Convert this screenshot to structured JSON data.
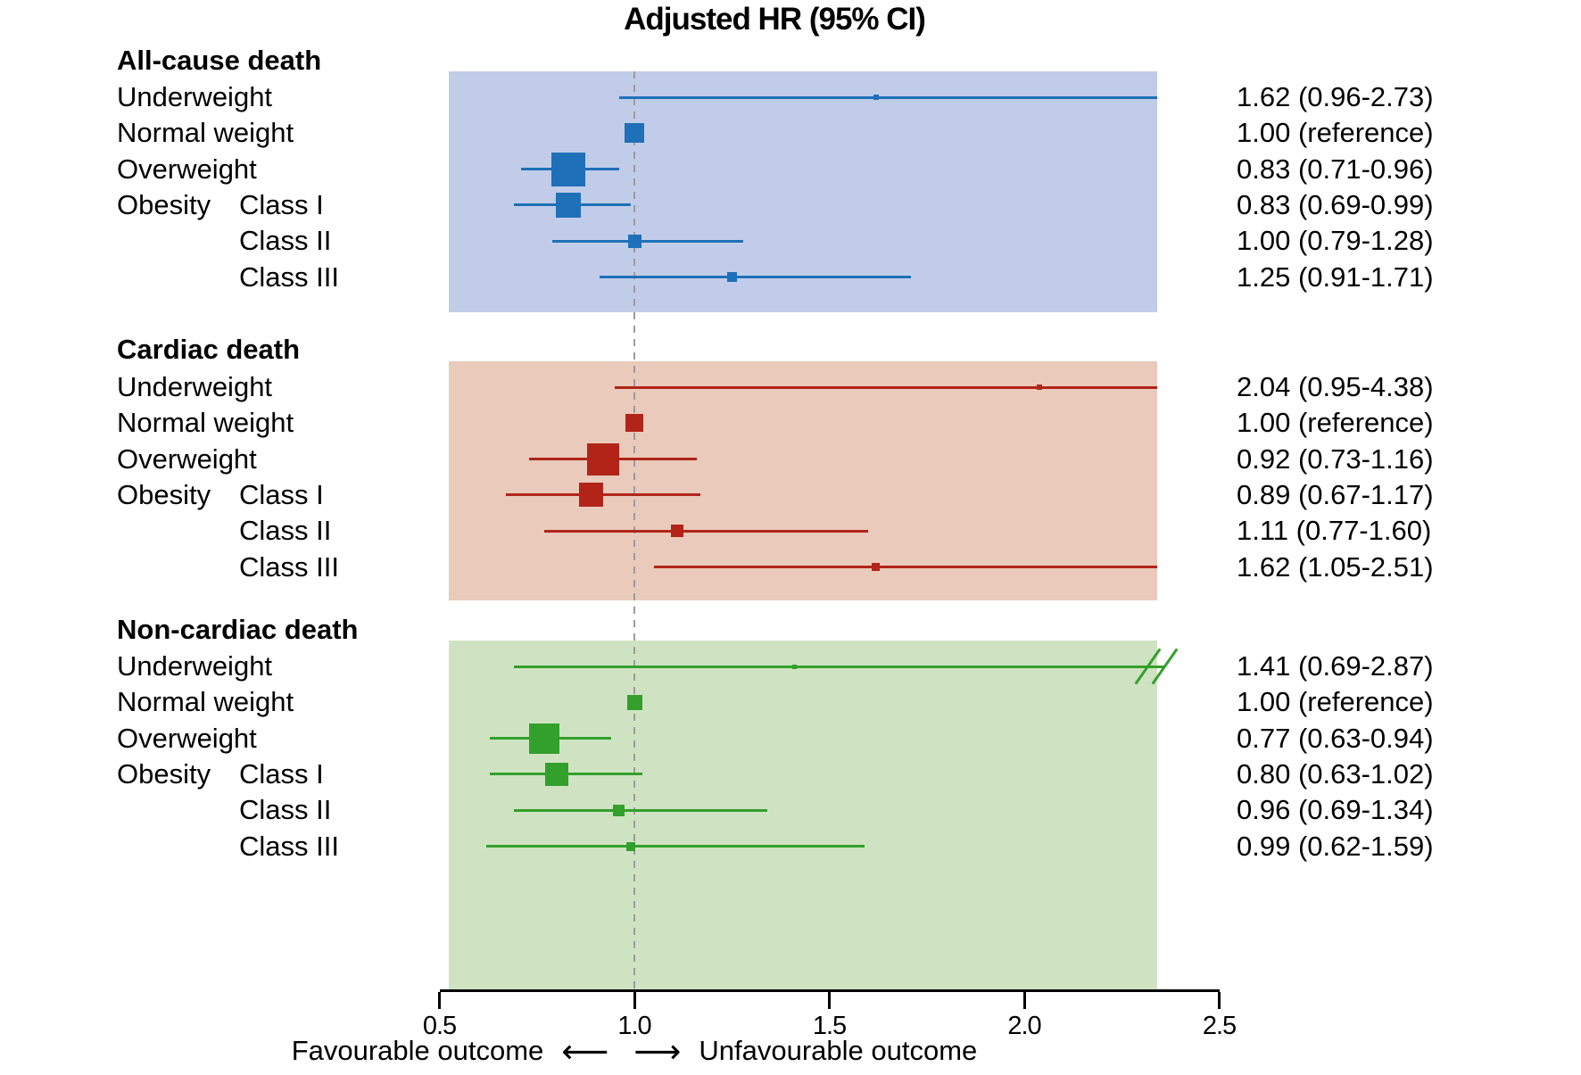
{
  "chart_data": {
    "type": "forest",
    "title": "Adjusted HR (95% CI)",
    "x_axis": {
      "scale": "linear",
      "min": 0.5,
      "max": 2.5,
      "ticks": [
        0.5,
        1.0,
        1.5,
        2.0,
        2.5
      ],
      "tick_labels": [
        "0.5",
        "1.0",
        "1.5",
        "2.0",
        "2.5"
      ],
      "reference_line": 1.0,
      "plot_band_range": [
        0.52,
        2.34
      ]
    },
    "footer": {
      "favourable_label": "Favourable outcome",
      "left_arrow": "⟵",
      "right_arrow": "⟶",
      "unfavourable_label": "Unfavourable outcome"
    },
    "reference_line_color": "#9b9b9b",
    "axis_color": "#000000",
    "sections": [
      {
        "name": "All-cause death",
        "band_color": "#c1cce8",
        "marker_color": "#1e71b8",
        "rows": [
          {
            "label": "Underweight",
            "sublabel": "",
            "display": "1.62 (0.96-2.73)",
            "hr": 1.62,
            "ci_low": 0.96,
            "ci_high": 2.73,
            "marker_size": 6,
            "reference": false,
            "clip_high": true,
            "break_symbol": false
          },
          {
            "label": "Normal weight",
            "sublabel": "",
            "display": "1.00 (reference)",
            "hr": 1.0,
            "ci_low": null,
            "ci_high": null,
            "marker_size": 22,
            "reference": true,
            "clip_high": false,
            "break_symbol": false
          },
          {
            "label": "Overweight",
            "sublabel": "",
            "display": "0.83 (0.71-0.96)",
            "hr": 0.83,
            "ci_low": 0.71,
            "ci_high": 0.96,
            "marker_size": 38,
            "reference": false,
            "clip_high": false,
            "break_symbol": false
          },
          {
            "label": "Obesity",
            "sublabel": "Class I",
            "display": "0.83 (0.69-0.99)",
            "hr": 0.83,
            "ci_low": 0.69,
            "ci_high": 0.99,
            "marker_size": 28,
            "reference": false,
            "clip_high": false,
            "break_symbol": false
          },
          {
            "label": "",
            "sublabel": "Class II",
            "display": "1.00 (0.79-1.28)",
            "hr": 1.0,
            "ci_low": 0.79,
            "ci_high": 1.28,
            "marker_size": 15,
            "reference": false,
            "clip_high": false,
            "break_symbol": false
          },
          {
            "label": "",
            "sublabel": "Class III",
            "display": "1.25 (0.91-1.71)",
            "hr": 1.25,
            "ci_low": 0.91,
            "ci_high": 1.71,
            "marker_size": 11,
            "reference": false,
            "clip_high": false,
            "break_symbol": false
          }
        ]
      },
      {
        "name": "Cardiac death",
        "band_color": "#e9cabb",
        "marker_color": "#b22418",
        "rows": [
          {
            "label": "Underweight",
            "sublabel": "",
            "display": "2.04 (0.95-4.38)",
            "hr": 2.04,
            "ci_low": 0.95,
            "ci_high": 4.38,
            "marker_size": 6,
            "reference": false,
            "clip_high": true,
            "break_symbol": false
          },
          {
            "label": "Normal weight",
            "sublabel": "",
            "display": "1.00 (reference)",
            "hr": 1.0,
            "ci_low": null,
            "ci_high": null,
            "marker_size": 20,
            "reference": true,
            "clip_high": false,
            "break_symbol": false
          },
          {
            "label": "Overweight",
            "sublabel": "",
            "display": "0.92 (0.73-1.16)",
            "hr": 0.92,
            "ci_low": 0.73,
            "ci_high": 1.16,
            "marker_size": 36,
            "reference": false,
            "clip_high": false,
            "break_symbol": false
          },
          {
            "label": "Obesity",
            "sublabel": "Class I",
            "display": "0.89 (0.67-1.17)",
            "hr": 0.89,
            "ci_low": 0.67,
            "ci_high": 1.17,
            "marker_size": 27,
            "reference": false,
            "clip_high": false,
            "break_symbol": false
          },
          {
            "label": "",
            "sublabel": "Class II",
            "display": "1.11 (0.77-1.60)",
            "hr": 1.11,
            "ci_low": 0.77,
            "ci_high": 1.6,
            "marker_size": 14,
            "reference": false,
            "clip_high": false,
            "break_symbol": false
          },
          {
            "label": "",
            "sublabel": "Class III",
            "display": "1.62 (1.05-2.51)",
            "hr": 1.62,
            "ci_low": 1.05,
            "ci_high": 2.51,
            "marker_size": 9,
            "reference": false,
            "clip_high": true,
            "break_symbol": false
          }
        ]
      },
      {
        "name": "Non-cardiac death",
        "band_color": "#cfe3c2",
        "marker_color": "#33a02c",
        "rows": [
          {
            "label": "Underweight",
            "sublabel": "",
            "display": "1.41 (0.69-2.87)",
            "hr": 1.41,
            "ci_low": 0.69,
            "ci_high": 2.87,
            "marker_size": 5,
            "reference": false,
            "clip_high": true,
            "break_symbol": true
          },
          {
            "label": "Normal weight",
            "sublabel": "",
            "display": "1.00 (reference)",
            "hr": 1.0,
            "ci_low": null,
            "ci_high": null,
            "marker_size": 17,
            "reference": true,
            "clip_high": false,
            "break_symbol": false
          },
          {
            "label": "Overweight",
            "sublabel": "",
            "display": "0.77 (0.63-0.94)",
            "hr": 0.77,
            "ci_low": 0.63,
            "ci_high": 0.94,
            "marker_size": 34,
            "reference": false,
            "clip_high": false,
            "break_symbol": false
          },
          {
            "label": "Obesity",
            "sublabel": "Class I",
            "display": "0.80 (0.63-1.02)",
            "hr": 0.8,
            "ci_low": 0.63,
            "ci_high": 1.02,
            "marker_size": 26,
            "reference": false,
            "clip_high": false,
            "break_symbol": false
          },
          {
            "label": "",
            "sublabel": "Class II",
            "display": "0.96 (0.69-1.34)",
            "hr": 0.96,
            "ci_low": 0.69,
            "ci_high": 1.34,
            "marker_size": 13,
            "reference": false,
            "clip_high": false,
            "break_symbol": false
          },
          {
            "label": "",
            "sublabel": "Class III",
            "display": "0.99 (0.62-1.59)",
            "hr": 0.99,
            "ci_low": 0.62,
            "ci_high": 1.59,
            "marker_size": 10,
            "reference": false,
            "clip_high": false,
            "break_symbol": false
          }
        ]
      }
    ]
  }
}
